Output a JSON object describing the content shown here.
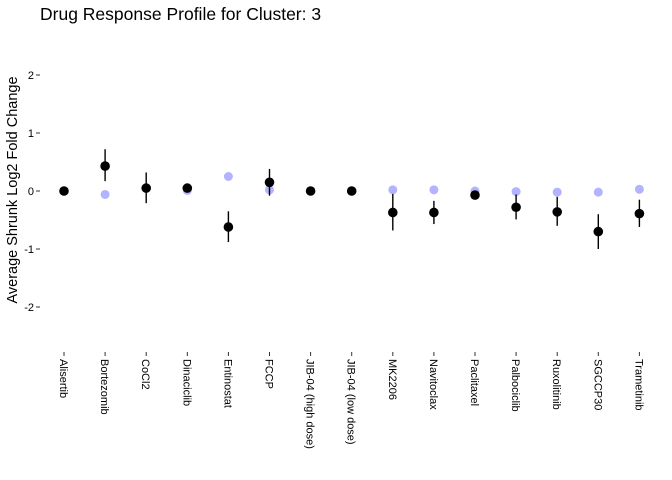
{
  "chart_data": {
    "type": "scatter",
    "title": "Drug Response Profile for Cluster:  3",
    "xlabel": "",
    "ylabel": "Average Shrunk Log2 Fold Change",
    "ylim": [
      -2.6,
      2.3
    ],
    "yticks": [
      -2,
      -1,
      0,
      1,
      2
    ],
    "grid": false,
    "legend": "none",
    "categories": [
      "Alisertib",
      "Bortezomib",
      "CoCl2",
      "Dinaciclib",
      "Entinostat",
      "FCCP",
      "JIB-04 (high dose)",
      "JIB-04 (low dose)",
      "MK2206",
      "Navitoclax",
      "Paclitaxel",
      "Palbociclib",
      "Ruxolitinib",
      "SGCCP30",
      "Trametinib"
    ],
    "series": [
      {
        "role": "comparison",
        "color": "#9999ff",
        "values": [
          0.0,
          -0.06,
          0.05,
          0.01,
          0.25,
          0.02,
          0.0,
          0.0,
          0.02,
          0.02,
          0.0,
          -0.01,
          -0.02,
          -0.02,
          0.03
        ]
      },
      {
        "role": "cluster",
        "color": "#000000",
        "values": [
          0.0,
          0.43,
          0.05,
          0.05,
          -0.62,
          0.15,
          0.0,
          0.0,
          -0.37,
          -0.37,
          -0.07,
          -0.28,
          -0.36,
          -0.7,
          -0.39
        ],
        "error_low": [
          0.0,
          0.17,
          -0.21,
          -0.02,
          -0.88,
          -0.08,
          0.0,
          0.0,
          -0.68,
          -0.57,
          -0.12,
          -0.49,
          -0.6,
          -1.0,
          -0.62
        ],
        "error_high": [
          0.0,
          0.72,
          0.32,
          0.12,
          -0.35,
          0.38,
          0.0,
          0.0,
          -0.05,
          -0.17,
          -0.02,
          -0.06,
          -0.1,
          -0.4,
          -0.15
        ]
      }
    ]
  }
}
